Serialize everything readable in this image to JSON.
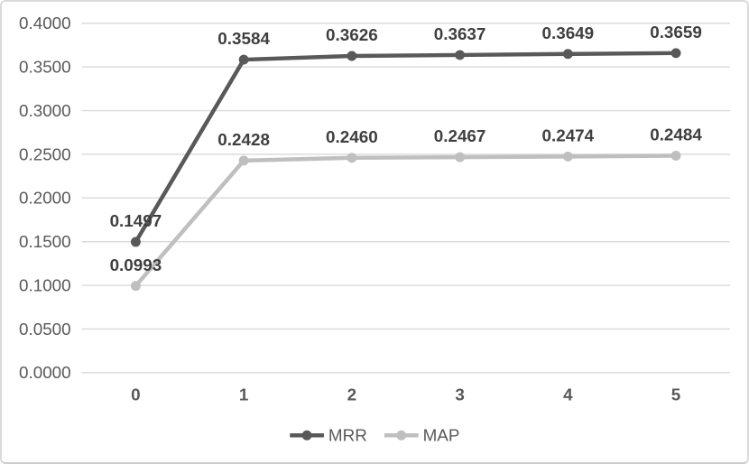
{
  "chart_data": {
    "type": "line",
    "title": "",
    "xlabel": "",
    "ylabel": "",
    "categories": [
      "0",
      "1",
      "2",
      "3",
      "4",
      "5"
    ],
    "series": [
      {
        "name": "MRR",
        "color": "#595959",
        "values": [
          0.1497,
          0.3584,
          0.3626,
          0.3637,
          0.3649,
          0.3659
        ]
      },
      {
        "name": "MAP",
        "color": "#bfbfbf",
        "values": [
          0.0993,
          0.2428,
          0.246,
          0.2467,
          0.2474,
          0.2484
        ]
      }
    ],
    "data_labels": true,
    "data_label_decimals": 4,
    "ylim": [
      0.0,
      0.4
    ],
    "y_tick_step": 0.05,
    "y_tick_labels": [
      "0.0000",
      "0.0500",
      "0.1000",
      "0.1500",
      "0.2000",
      "0.2500",
      "0.3000",
      "0.3500",
      "0.4000"
    ],
    "grid": true,
    "legend_position": "bottom",
    "legend_items": [
      "MRR",
      "MAP"
    ]
  },
  "colors": {
    "background": "#ffffff",
    "grid_line": "#d9d9d9",
    "axis_tick_text": "#595959",
    "x_tick_text": "#595959",
    "data_label_text": "#3f3f3f",
    "legend_text": "#595959",
    "frame_border": "#dadada"
  }
}
